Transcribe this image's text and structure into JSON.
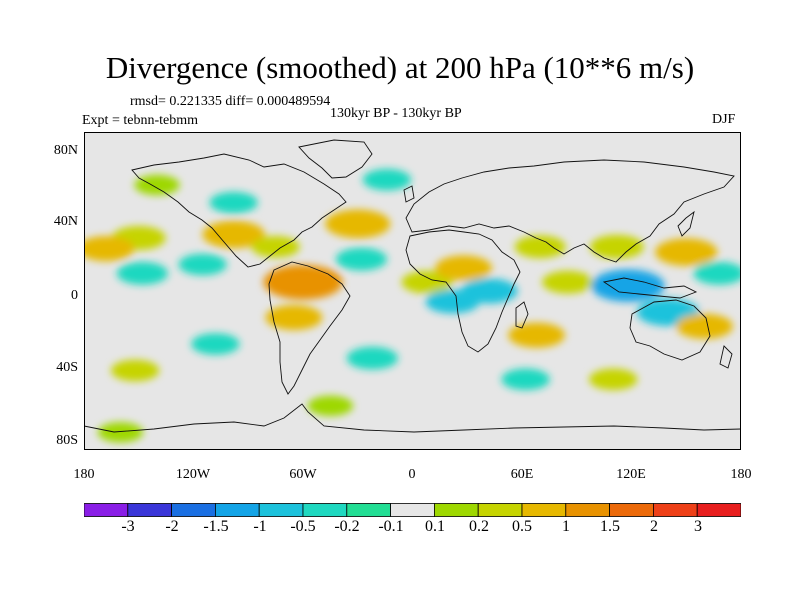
{
  "header": {
    "title": "Divergence (smoothed) at 200 hPa (10**6 m/s)",
    "stats": "rmsd= 0.221335 diff= 0.000489594",
    "experiment": "Expt = tebnn-tebmm",
    "period": "130kyr BP - 130kyr BP",
    "season": "DJF"
  },
  "axes": {
    "lat_ticks": [
      "80N",
      "40N",
      "0",
      "40S",
      "80S"
    ],
    "lon_ticks": [
      "180",
      "120W",
      "60W",
      "0",
      "60E",
      "120E",
      "180"
    ]
  },
  "colorbar": {
    "labels": [
      "-3",
      "-2",
      "-1.5",
      "-1",
      "-0.5",
      "-0.2",
      "-0.1",
      "0.1",
      "0.2",
      "0.5",
      "1",
      "1.5",
      "2",
      "3"
    ],
    "colors": [
      "#8a1ee6",
      "#3a36d8",
      "#1a6fe2",
      "#14a4e6",
      "#1cc2dc",
      "#1fd8c0",
      "#22de94",
      "#e6e6e6",
      "#9ed800",
      "#c6d400",
      "#e6b800",
      "#e89200",
      "#ec6a0a",
      "#ee4018",
      "#e81e1e"
    ]
  },
  "chart_data": {
    "type": "contour-map",
    "field": "Divergence (smoothed) at 200 hPa",
    "units": "10**6 m/s",
    "lon_range": [
      -180,
      180
    ],
    "lat_range": [
      -90,
      90
    ],
    "levels": [
      -3,
      -2,
      -1.5,
      -1,
      -0.5,
      -0.2,
      -0.1,
      0.1,
      0.2,
      0.5,
      1,
      1.5,
      2,
      3
    ],
    "blobs": [
      {
        "lon": -140,
        "lat": 60,
        "value": 0.2
      },
      {
        "lon": -98,
        "lat": 50,
        "value": -0.3
      },
      {
        "lon": -150,
        "lat": 30,
        "value": 0.5
      },
      {
        "lon": -168,
        "lat": 24,
        "value": 0.6
      },
      {
        "lon": -98,
        "lat": 32,
        "value": 0.8
      },
      {
        "lon": -75,
        "lat": 25,
        "value": 0.3
      },
      {
        "lon": -115,
        "lat": 15,
        "value": -0.3
      },
      {
        "lon": -148,
        "lat": 10,
        "value": -0.4
      },
      {
        "lon": -60,
        "lat": 5,
        "value": 1.4
      },
      {
        "lon": -65,
        "lat": -15,
        "value": 0.6
      },
      {
        "lon": -30,
        "lat": 38,
        "value": 0.9
      },
      {
        "lon": -28,
        "lat": 18,
        "value": -0.4
      },
      {
        "lon": -14,
        "lat": 63,
        "value": -0.3
      },
      {
        "lon": 8,
        "lat": 5,
        "value": 0.4
      },
      {
        "lon": 22,
        "lat": -6,
        "value": -0.5
      },
      {
        "lon": 28,
        "lat": 13,
        "value": 0.6
      },
      {
        "lon": 42,
        "lat": 0,
        "value": -0.6
      },
      {
        "lon": 70,
        "lat": 25,
        "value": 0.4
      },
      {
        "lon": 85,
        "lat": 5,
        "value": 0.4
      },
      {
        "lon": 112,
        "lat": 25,
        "value": 0.5
      },
      {
        "lon": 118,
        "lat": 3,
        "value": -1.2
      },
      {
        "lon": 140,
        "lat": -12,
        "value": -0.8
      },
      {
        "lon": 150,
        "lat": 22,
        "value": 0.8
      },
      {
        "lon": 168,
        "lat": 10,
        "value": -0.4
      },
      {
        "lon": 160,
        "lat": -20,
        "value": 0.6
      },
      {
        "lon": 68,
        "lat": -25,
        "value": 0.6
      },
      {
        "lon": 62,
        "lat": -50,
        "value": -0.3
      },
      {
        "lon": 110,
        "lat": -50,
        "value": 0.3
      },
      {
        "lon": -108,
        "lat": -30,
        "value": -0.3
      },
      {
        "lon": -152,
        "lat": -45,
        "value": 0.3
      },
      {
        "lon": -22,
        "lat": -38,
        "value": -0.4
      },
      {
        "lon": -45,
        "lat": -65,
        "value": 0.2
      },
      {
        "lon": -160,
        "lat": -80,
        "value": 0.2
      }
    ]
  }
}
